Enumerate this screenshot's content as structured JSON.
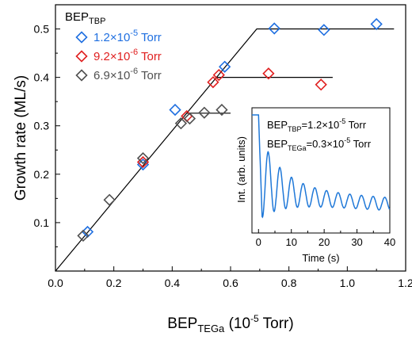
{
  "chart_data": {
    "type": "scatter",
    "xlabel": {
      "main": "BEP",
      "sub": "TEGa",
      "rest": " (10",
      "exp": "-5",
      "tail": " Torr)"
    },
    "ylabel": "Growth rate (ML/s)",
    "xlim": [
      0.0,
      1.2
    ],
    "ylim": [
      0.0,
      0.55
    ],
    "xticks": [
      "0.0",
      "0.2",
      "0.4",
      "0.6",
      "0.8",
      "1.0",
      "1.2"
    ],
    "xtick_values": [
      0.0,
      0.2,
      0.4,
      0.6,
      0.8,
      1.0,
      1.2
    ],
    "yticks": [
      "0.1",
      "0.2",
      "0.3",
      "0.4",
      "0.5"
    ],
    "ytick_values": [
      0.1,
      0.2,
      0.3,
      0.4,
      0.5
    ],
    "legend": {
      "title_main": "BEP",
      "title_sub": "TBP",
      "placement": "top-left"
    },
    "series": [
      {
        "name": "1.2×10-5 Torr",
        "label_parts": {
          "base": "1.2×10",
          "exp": "-5",
          "unit": " Torr"
        },
        "color": "#1f6fe0",
        "x": [
          0.11,
          0.3,
          0.41,
          0.58,
          0.75,
          0.92,
          1.1
        ],
        "y": [
          0.081,
          0.22,
          0.333,
          0.422,
          0.501,
          0.498,
          0.51
        ]
      },
      {
        "name": "9.2×10-6 Torr",
        "label_parts": {
          "base": "9.2×10",
          "exp": "-6",
          "unit": " Torr"
        },
        "color": "#e02020",
        "x": [
          0.3,
          0.45,
          0.54,
          0.56,
          0.73,
          0.91
        ],
        "y": [
          0.225,
          0.32,
          0.39,
          0.405,
          0.408,
          0.385
        ]
      },
      {
        "name": "6.9×10-6 Torr",
        "label_parts": {
          "base": "6.9×10",
          "exp": "-6",
          "unit": " Torr"
        },
        "color": "#505050",
        "x": [
          0.095,
          0.185,
          0.3,
          0.43,
          0.46,
          0.51,
          0.57
        ],
        "y": [
          0.073,
          0.147,
          0.233,
          0.305,
          0.315,
          0.327,
          0.333
        ]
      }
    ],
    "fit_lines": [
      {
        "points": [
          [
            0.0,
            0.0
          ],
          [
            0.69,
            0.5
          ],
          [
            1.16,
            0.5
          ]
        ]
      },
      {
        "points": [
          [
            0.55,
            0.4
          ],
          [
            0.95,
            0.4
          ]
        ]
      },
      {
        "points": [
          [
            0.45,
            0.326
          ],
          [
            0.6,
            0.326
          ]
        ]
      }
    ],
    "inset": {
      "type": "line",
      "xlabel": "Time (s)",
      "ylabel": "Int. (arb. units)",
      "xlim": [
        -2,
        40
      ],
      "xticks": [
        "0",
        "10",
        "20",
        "30",
        "40"
      ],
      "xtick_values": [
        0,
        10,
        20,
        30,
        40
      ],
      "line_color": "#1f78d8",
      "annotation1": {
        "main": "BEP",
        "sub": "TBP",
        "eq": "=1.2×10",
        "exp": "-5",
        "tail": " Torr"
      },
      "annotation2": {
        "main": "BEP",
        "sub": "TEGa",
        "eq": "=0.3×10",
        "exp": "-5",
        "tail": " Torr"
      }
    }
  }
}
